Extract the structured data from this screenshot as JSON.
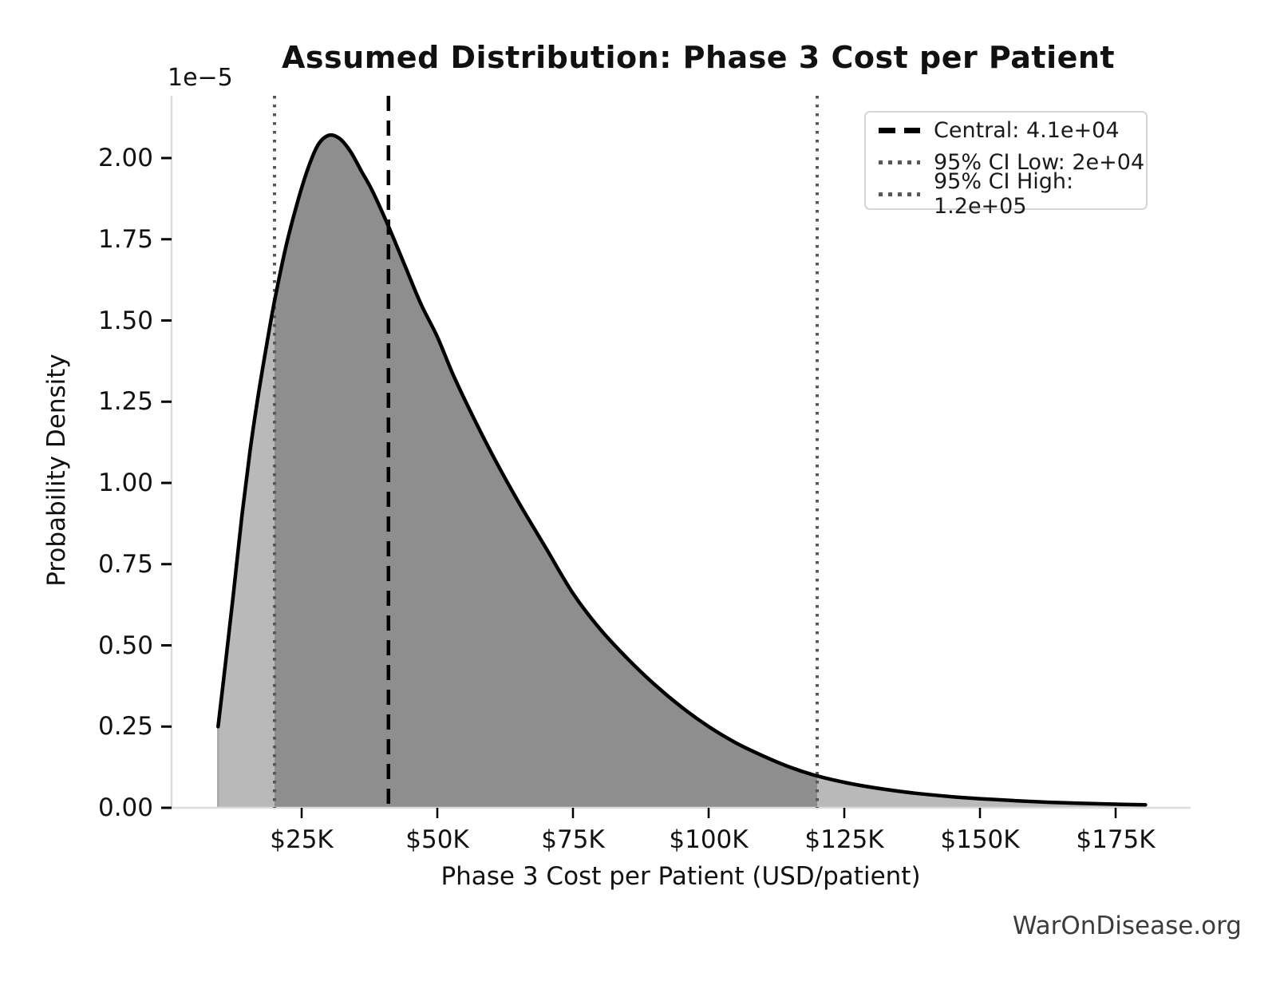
{
  "title": "Assumed Distribution: Phase 3 Cost per Patient",
  "watermark": "WarOnDisease.org",
  "legend": {
    "position": "upper right",
    "items": [
      {
        "label": "Central: 4.1e+04",
        "style": "dashed",
        "color": "#000000"
      },
      {
        "label": "95% CI Low: 2e+04",
        "style": "dotted",
        "color": "#575757"
      },
      {
        "label": "95% CI High: 1.2e+05",
        "style": "dotted",
        "color": "#575757"
      }
    ]
  },
  "chart_data": {
    "type": "area",
    "title": "Assumed Distribution: Phase 3 Cost per Patient",
    "xlabel": "Phase 3 Cost per Patient (USD/patient)",
    "ylabel": "Probability Density",
    "y_scale_offset_label": "1e−5",
    "x_tick_labels": [
      "$25K",
      "$50K",
      "$75K",
      "$100K",
      "$125K",
      "$150K",
      "$175K"
    ],
    "x_tick_values_kusd": [
      25,
      50,
      75,
      100,
      125,
      150,
      175
    ],
    "y_tick_labels": [
      "0.00",
      "0.25",
      "0.50",
      "0.75",
      "1.00",
      "1.25",
      "1.50",
      "1.75",
      "2.00"
    ],
    "y_tick_values_1e5": [
      0,
      0.25,
      0.5,
      0.75,
      1.0,
      1.25,
      1.5,
      1.75,
      2.0
    ],
    "xlim_kusd": [
      1,
      189
    ],
    "ylim_1e5": [
      0,
      2.19
    ],
    "grid": false,
    "vlines": {
      "central_usd": 41000,
      "ci_low_usd": 20000,
      "ci_high_usd": 120000
    },
    "shaded_ci_range_kusd": [
      20,
      120
    ],
    "curve_x_kusd": [
      9.6,
      11,
      12.5,
      14,
      15.5,
      17,
      18.5,
      20,
      22,
      24,
      26,
      28,
      30,
      32,
      34,
      36,
      38,
      41,
      44,
      47,
      50,
      53,
      57,
      61,
      65,
      70,
      75,
      80,
      85,
      90,
      95,
      100,
      105,
      110,
      115,
      120,
      126,
      132,
      138,
      145,
      152,
      160,
      168,
      175,
      180.5
    ],
    "curve_density_1e5": [
      0.25,
      0.45,
      0.67,
      0.9,
      1.1,
      1.27,
      1.42,
      1.56,
      1.72,
      1.85,
      1.96,
      2.04,
      2.07,
      2.06,
      2.02,
      1.96,
      1.9,
      1.79,
      1.67,
      1.55,
      1.45,
      1.33,
      1.19,
      1.06,
      0.94,
      0.8,
      0.66,
      0.55,
      0.46,
      0.38,
      0.31,
      0.25,
      0.2,
      0.16,
      0.125,
      0.098,
      0.075,
      0.058,
      0.045,
      0.034,
      0.026,
      0.019,
      0.014,
      0.011,
      0.009
    ],
    "colors": {
      "curve": "#000000",
      "fill_outer": "#b9b9b9",
      "fill_ci": "#8e8e8e",
      "central_line": "#000000",
      "ci_line": "#575757",
      "spine": "#dcdcdc",
      "tick": "#000000",
      "fill_edge": "#a9a9a9",
      "watermark_text": "#3c3c3c"
    }
  }
}
